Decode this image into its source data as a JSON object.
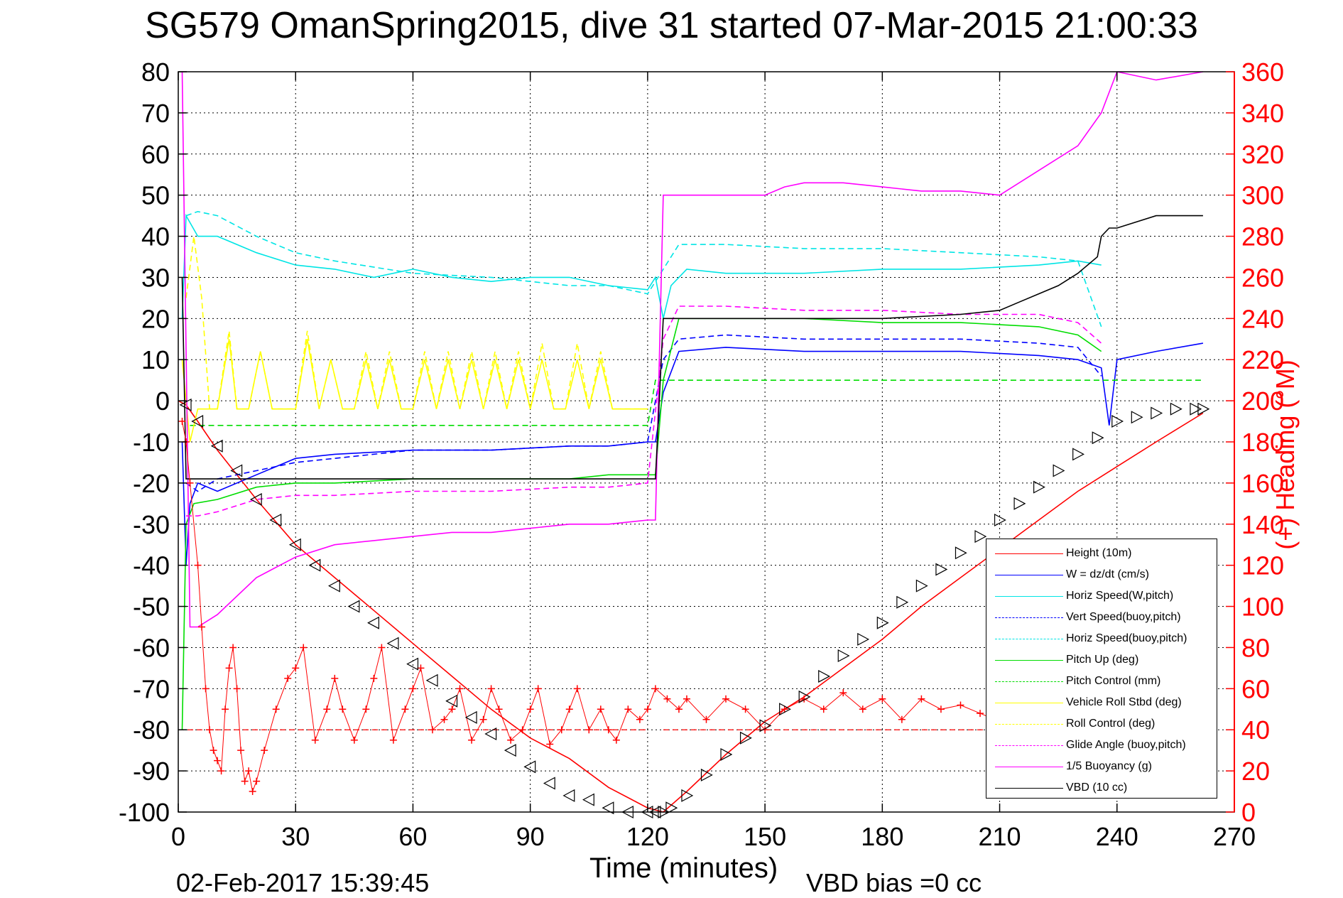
{
  "title": "SG579 OmanSpring2015, dive 31 started 07-Mar-2015 21:00:33",
  "footer": {
    "timestamp": "02-Feb-2017 15:39:45",
    "vbd_bias": "VBD bias =0 cc"
  },
  "chart_data": {
    "type": "line",
    "title": "SG579 OmanSpring2015, dive 31 started 07-Mar-2015 21:00:33",
    "xlabel": "Time (minutes)",
    "ylabel": "",
    "y2label": "(+) Heading (°M)",
    "xlim": [
      0,
      270
    ],
    "ylim": [
      -100,
      80
    ],
    "y2lim": [
      0,
      360
    ],
    "xticks": [
      0,
      30,
      60,
      90,
      120,
      150,
      180,
      210,
      240,
      270
    ],
    "yticks": [
      -100,
      -90,
      -80,
      -70,
      -60,
      -50,
      -40,
      -30,
      -20,
      -10,
      0,
      10,
      20,
      30,
      40,
      50,
      60,
      70,
      80
    ],
    "y2ticks": [
      0,
      20,
      40,
      60,
      80,
      100,
      120,
      140,
      160,
      180,
      200,
      220,
      240,
      260,
      280,
      300,
      320,
      340,
      360
    ],
    "grid": true,
    "legend_position": "bottom-right",
    "colors": {
      "red": "#ff0000",
      "blue": "#0000ff",
      "cyan": "#00e5e5",
      "green": "#00dd00",
      "yellow": "#ffff00",
      "magenta": "#ff00ff",
      "black": "#000000"
    },
    "series": [
      {
        "name": "Height (10m)",
        "color": "#ff0000",
        "style": "solid",
        "x": [
          0,
          2,
          5,
          10,
          20,
          30,
          40,
          50,
          60,
          70,
          80,
          90,
          100,
          110,
          120,
          124,
          130,
          140,
          150,
          160,
          170,
          180,
          190,
          200,
          210,
          220,
          230,
          240,
          250,
          262
        ],
        "y": [
          0,
          -1,
          -5,
          -12,
          -24,
          -35,
          -43,
          -51,
          -59,
          -67,
          -75,
          -82,
          -87,
          -94,
          -99,
          -100,
          -95,
          -86,
          -78,
          -72,
          -65,
          -58,
          -50,
          -43,
          -36,
          -29,
          -22,
          -16,
          -10,
          -3
        ]
      },
      {
        "name": "W = dz/dt (cm/s)",
        "color": "#0000ff",
        "style": "solid",
        "x": [
          1,
          2,
          3,
          5,
          10,
          20,
          30,
          40,
          60,
          80,
          100,
          110,
          120,
          122,
          124,
          128,
          140,
          160,
          180,
          200,
          220,
          230,
          236,
          238,
          240,
          250,
          262
        ],
        "y": [
          -10,
          -40,
          -25,
          -20,
          -22,
          -18,
          -14,
          -13,
          -12,
          -12,
          -11,
          -11,
          -10,
          -10,
          2,
          12,
          13,
          12,
          12,
          12,
          11,
          10,
          8,
          -6,
          10,
          12,
          14
        ]
      },
      {
        "name": "Horiz Speed(W,pitch)",
        "color": "#00e5e5",
        "style": "solid",
        "x": [
          1,
          2,
          5,
          10,
          20,
          30,
          40,
          50,
          60,
          70,
          80,
          90,
          100,
          110,
          120,
          122,
          124,
          126,
          130,
          140,
          160,
          180,
          200,
          220,
          230,
          236
        ],
        "y": [
          20,
          45,
          40,
          40,
          36,
          33,
          32,
          30,
          32,
          30,
          29,
          30,
          30,
          28,
          27,
          30,
          20,
          28,
          32,
          31,
          31,
          32,
          32,
          33,
          34,
          33
        ]
      },
      {
        "name": "Vert Speed(buoy,pitch)",
        "color": "#0000ff",
        "style": "dashed",
        "x": [
          2,
          5,
          10,
          20,
          30,
          40,
          60,
          80,
          100,
          110,
          120,
          124,
          128,
          140,
          160,
          180,
          200,
          220,
          230,
          236
        ],
        "y": [
          -20,
          -22,
          -19,
          -17,
          -15,
          -14,
          -12,
          -12,
          -11,
          -11,
          -10,
          10,
          15,
          16,
          15,
          15,
          15,
          14,
          13,
          6
        ]
      },
      {
        "name": "Horiz Speed(buoy,pitch)",
        "color": "#00e5e5",
        "style": "dashed",
        "x": [
          2,
          5,
          10,
          20,
          30,
          40,
          60,
          80,
          100,
          110,
          120,
          124,
          128,
          140,
          160,
          180,
          200,
          220,
          230,
          236
        ],
        "y": [
          45,
          46,
          45,
          40,
          36,
          34,
          31,
          30,
          28,
          28,
          26,
          32,
          38,
          38,
          37,
          37,
          36,
          35,
          34,
          18
        ]
      },
      {
        "name": "Pitch Up (deg)",
        "color": "#00dd00",
        "style": "solid",
        "x": [
          1,
          2,
          4,
          10,
          20,
          30,
          40,
          60,
          80,
          100,
          110,
          120,
          122,
          124,
          128,
          140,
          160,
          180,
          200,
          220,
          230,
          236
        ],
        "y": [
          -80,
          -30,
          -25,
          -24,
          -21,
          -20,
          -20,
          -19,
          -19,
          -19,
          -18,
          -18,
          -18,
          5,
          20,
          20,
          20,
          19,
          19,
          18,
          16,
          12
        ]
      },
      {
        "name": "Pitch Control (mm)",
        "color": "#00dd00",
        "style": "dashed",
        "x": [
          3,
          5,
          10,
          20,
          30,
          60,
          90,
          120,
          122,
          126,
          150,
          180,
          210,
          240,
          262
        ],
        "y": [
          -6,
          -6,
          -6,
          -6,
          -6,
          -6,
          -6,
          -6,
          5,
          5,
          5,
          5,
          5,
          5,
          5
        ]
      },
      {
        "name": "Vehicle Roll Stbd (deg)",
        "color": "#ffff00",
        "style": "solid",
        "x": [
          1,
          3,
          5,
          8,
          10,
          13,
          15,
          18,
          21,
          24,
          27,
          30,
          33,
          36,
          39,
          42,
          45,
          48,
          51,
          54,
          57,
          60,
          63,
          66,
          69,
          72,
          75,
          78,
          81,
          84,
          87,
          90,
          93,
          96,
          99,
          102,
          105,
          108,
          111,
          114,
          117,
          120
        ],
        "y": [
          10,
          -10,
          -2,
          -2,
          -2,
          15,
          -2,
          -2,
          12,
          -2,
          -2,
          -2,
          15,
          -2,
          10,
          -2,
          -2,
          10,
          -2,
          10,
          -2,
          -2,
          10,
          -2,
          10,
          -2,
          10,
          -2,
          10,
          -2,
          10,
          -2,
          10,
          -2,
          -2,
          10,
          -2,
          10,
          -2,
          -2,
          -2,
          -2
        ]
      },
      {
        "name": "Roll Control (deg)",
        "color": "#ffff00",
        "style": "dashed",
        "x": [
          2,
          4,
          6,
          8,
          10,
          13,
          15,
          18,
          21,
          24,
          27,
          30,
          33,
          36,
          39,
          42,
          45,
          48,
          51,
          54,
          57,
          60,
          63,
          66,
          69,
          72,
          75,
          78,
          81,
          84,
          87,
          90,
          93,
          96,
          99,
          102,
          105,
          108,
          111,
          114,
          117,
          120
        ],
        "y": [
          25,
          40,
          25,
          -2,
          -2,
          17,
          -2,
          -2,
          12,
          -2,
          -2,
          -2,
          17,
          -2,
          10,
          -2,
          -2,
          12,
          -2,
          12,
          -2,
          -2,
          12,
          -2,
          12,
          -2,
          12,
          -2,
          12,
          -2,
          12,
          -2,
          14,
          -2,
          -2,
          14,
          -2,
          12,
          -2,
          -2,
          -2,
          -2
        ]
      },
      {
        "name": "Glide Angle (buoy,pitch)",
        "color": "#ff00ff",
        "style": "dashed",
        "x": [
          2,
          5,
          10,
          20,
          30,
          40,
          60,
          80,
          100,
          110,
          120,
          124,
          128,
          140,
          160,
          180,
          200,
          220,
          230,
          236
        ],
        "y": [
          -28,
          -28,
          -27,
          -24,
          -23,
          -23,
          -22,
          -22,
          -21,
          -21,
          -20,
          15,
          23,
          23,
          22,
          22,
          21,
          21,
          19,
          14
        ]
      },
      {
        "name": "1/5 Buoyancy (g)",
        "color": "#ff00ff",
        "style": "solid",
        "x": [
          1,
          3,
          5,
          10,
          20,
          30,
          40,
          50,
          60,
          70,
          80,
          90,
          100,
          110,
          120,
          122,
          124,
          126,
          130,
          140,
          150,
          155,
          160,
          170,
          180,
          190,
          200,
          210,
          220,
          230,
          236,
          240,
          250,
          262
        ],
        "y": [
          80,
          -55,
          -55,
          -52,
          -43,
          -38,
          -35,
          -34,
          -33,
          -32,
          -32,
          -31,
          -30,
          -30,
          -29,
          -29,
          50,
          50,
          50,
          50,
          50,
          52,
          53,
          53,
          52,
          51,
          51,
          50,
          56,
          62,
          70,
          80,
          78,
          80
        ]
      },
      {
        "name": "VBD (10 cc)",
        "color": "#000000",
        "style": "solid",
        "x": [
          1,
          2,
          3,
          5,
          10,
          20,
          40,
          60,
          80,
          100,
          120,
          122,
          124,
          126,
          130,
          150,
          180,
          200,
          210,
          215,
          220,
          225,
          230,
          235,
          236,
          238,
          240,
          250,
          262
        ],
        "y": [
          30,
          -19,
          -19,
          -19,
          -19,
          -19,
          -19,
          -19,
          -19,
          -19,
          -19,
          -19,
          20,
          20,
          20,
          20,
          20,
          21,
          22,
          24,
          26,
          28,
          31,
          35,
          40,
          42,
          42,
          45,
          45
        ]
      }
    ],
    "heading": {
      "color": "#ff0000",
      "axis": "right",
      "marker": "+",
      "reference": 40,
      "x": [
        1,
        2,
        3,
        5,
        6,
        7,
        8,
        9,
        10,
        11,
        12,
        13,
        14,
        15,
        16,
        17,
        18,
        19,
        20,
        22,
        25,
        28,
        30,
        32,
        35,
        38,
        40,
        42,
        45,
        48,
        50,
        52,
        55,
        58,
        60,
        62,
        65,
        68,
        70,
        72,
        75,
        78,
        80,
        82,
        85,
        88,
        90,
        92,
        95,
        98,
        100,
        102,
        105,
        108,
        110,
        112,
        115,
        118,
        120,
        122,
        125,
        128,
        130,
        135,
        140,
        145,
        150,
        155,
        160,
        165,
        170,
        175,
        180,
        185,
        190,
        195,
        200,
        205,
        210
      ],
      "y": [
        190,
        180,
        160,
        120,
        90,
        60,
        40,
        30,
        25,
        20,
        50,
        70,
        80,
        60,
        30,
        15,
        20,
        10,
        15,
        30,
        50,
        65,
        70,
        80,
        35,
        50,
        65,
        50,
        35,
        50,
        65,
        80,
        35,
        50,
        60,
        70,
        40,
        45,
        50,
        60,
        35,
        45,
        60,
        50,
        35,
        40,
        50,
        60,
        33,
        40,
        50,
        60,
        40,
        50,
        40,
        35,
        50,
        45,
        50,
        60,
        55,
        50,
        55,
        45,
        55,
        50,
        40,
        50,
        55,
        50,
        58,
        50,
        55,
        45,
        55,
        50,
        52,
        48,
        44
      ]
    },
    "depth_markers": {
      "marker": "triangle",
      "x": [
        2,
        5,
        10,
        15,
        20,
        25,
        30,
        35,
        40,
        45,
        50,
        55,
        60,
        65,
        70,
        75,
        80,
        85,
        90,
        95,
        100,
        105,
        110,
        115,
        120,
        122,
        124,
        126,
        130,
        135,
        140,
        145,
        150,
        155,
        160,
        165,
        170,
        175,
        180,
        185,
        190,
        195,
        200,
        205,
        210,
        215,
        220,
        225,
        230,
        235,
        240,
        245,
        250,
        255,
        260,
        262
      ],
      "y": [
        -1,
        -5,
        -11,
        -17,
        -24,
        -29,
        -35,
        -40,
        -45,
        -50,
        -54,
        -59,
        -64,
        -68,
        -73,
        -77,
        -81,
        -85,
        -89,
        -93,
        -96,
        -97,
        -99,
        -100,
        -100,
        -100,
        -100,
        -99,
        -96,
        -91,
        -86,
        -82,
        -79,
        -75,
        -72,
        -67,
        -62,
        -58,
        -54,
        -49,
        -45,
        -41,
        -37,
        -33,
        -29,
        -25,
        -21,
        -17,
        -13,
        -9,
        -5,
        -4,
        -3,
        -2,
        -2,
        -2
      ]
    }
  }
}
